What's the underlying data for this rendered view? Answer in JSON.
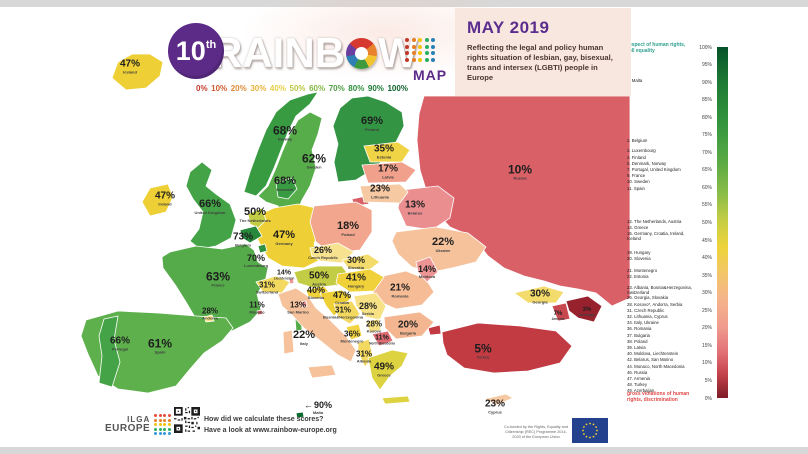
{
  "header": {
    "edition_number": "10",
    "edition_suffix": "th",
    "title_left": "RAINB",
    "title_right": "W",
    "map_label": "MAP",
    "dots_column_colors": [
      "#c0392b",
      "#e67e22",
      "#f1c40f",
      "#27ae60",
      "#2980b9"
    ],
    "scale_ticks": [
      {
        "label": "0%",
        "color": "#c53a2e"
      },
      {
        "label": "10%",
        "color": "#d05c2f"
      },
      {
        "label": "20%",
        "color": "#df8c36"
      },
      {
        "label": "30%",
        "color": "#e9b33d"
      },
      {
        "label": "40%",
        "color": "#e6cf45"
      },
      {
        "label": "50%",
        "color": "#bcc944"
      },
      {
        "label": "60%",
        "color": "#84b746"
      },
      {
        "label": "70%",
        "color": "#4d9f43"
      },
      {
        "label": "80%",
        "color": "#2f8f3e"
      },
      {
        "label": "90%",
        "color": "#1b7a33"
      },
      {
        "label": "100%",
        "color": "#0d622c"
      }
    ],
    "panel": {
      "title": "MAY 2019",
      "subtitle": "Reflecting the legal and policy human rights situation of lesbian, gay, bisexual, trans and intersex (LGBTI) people in Europe",
      "bg_color": "#f8e7de",
      "title_color": "#5b2d8e"
    }
  },
  "legend": {
    "top_label": "respect of human rights, full equality",
    "bottom_label": "gross violations of human rights, discrimination",
    "axis_ticks": [
      "100%",
      "95%",
      "90%",
      "85%",
      "80%",
      "75%",
      "70%",
      "65%",
      "60%",
      "55%",
      "50%",
      "45%",
      "40%",
      "35%",
      "30%",
      "25%",
      "20%",
      "15%",
      "10%",
      "5%",
      "0%"
    ],
    "gradient_stops": [
      [
        "#06522a",
        0
      ],
      [
        "#1d7a34",
        10
      ],
      [
        "#35963f",
        22
      ],
      [
        "#57a944",
        32
      ],
      [
        "#8cbd48",
        42
      ],
      [
        "#c9cf45",
        50
      ],
      [
        "#eed33a",
        57
      ],
      [
        "#f2c766",
        64
      ],
      [
        "#f5b48b",
        72
      ],
      [
        "#ef9a8d",
        80
      ],
      [
        "#e37077",
        87
      ],
      [
        "#c6444c",
        93
      ],
      [
        "#7c1b27",
        100
      ]
    ],
    "rankings": [
      {
        "rank": "1.",
        "label": "Malta",
        "score": 90
      },
      {
        "rank": "2.",
        "label": "Belgium",
        "score": 73
      },
      {
        "rank": "3.",
        "label": "Luxembourg",
        "score": 70
      },
      {
        "rank": "4.",
        "label": "Finland",
        "score": 69
      },
      {
        "rank": "5.",
        "label": "Denmark, Norway",
        "score": 68
      },
      {
        "rank": "7.",
        "label": "Portugal, United Kingdom",
        "score": 66
      },
      {
        "rank": "9.",
        "label": "France",
        "score": 63
      },
      {
        "rank": "10.",
        "label": "Sweden",
        "score": 62
      },
      {
        "rank": "11.",
        "label": "Spain",
        "score": 61
      },
      {
        "rank": "12.",
        "label": "The Netherlands, Austria",
        "score": 50
      },
      {
        "rank": "14.",
        "label": "Greece",
        "score": 49
      },
      {
        "rank": "15.",
        "label": "Germany, Croatia, Ireland, Iceland",
        "score": 47
      },
      {
        "rank": "19.",
        "label": "Hungary",
        "score": 41
      },
      {
        "rank": "20.",
        "label": "Slovenia",
        "score": 40
      },
      {
        "rank": "21.",
        "label": "Montenegro",
        "score": 36
      },
      {
        "rank": "22.",
        "label": "Estonia",
        "score": 35
      },
      {
        "rank": "23.",
        "label": "Albania, Bosnia&Herzegovina, Switzerland",
        "score": 31
      },
      {
        "rank": "26.",
        "label": "Georgia, Slovakia",
        "score": 30
      },
      {
        "rank": "28.",
        "label": "Kosovo*, Andorra, Serbia",
        "score": 28
      },
      {
        "rank": "31.",
        "label": "Czech Republic",
        "score": 26
      },
      {
        "rank": "32.",
        "label": "Lithuania, Cyprus",
        "score": 23
      },
      {
        "rank": "34.",
        "label": "Italy, Ukraine",
        "score": 22
      },
      {
        "rank": "36.",
        "label": "Romania",
        "score": 21
      },
      {
        "rank": "37.",
        "label": "Bulgaria",
        "score": 20
      },
      {
        "rank": "38.",
        "label": "Poland",
        "score": 18
      },
      {
        "rank": "39.",
        "label": "Latvia",
        "score": 17
      },
      {
        "rank": "40.",
        "label": "Moldova, Liechtenstein",
        "score": 14
      },
      {
        "rank": "42.",
        "label": "Belarus, San Marino",
        "score": 13
      },
      {
        "rank": "44.",
        "label": "Monaco, North Macedonia",
        "score": 11
      },
      {
        "rank": "46.",
        "label": "Russia",
        "score": 10
      },
      {
        "rank": "47.",
        "label": "Armenia",
        "score": 7
      },
      {
        "rank": "48.",
        "label": "Turkey",
        "score": 5
      },
      {
        "rank": "49.",
        "label": "Azerbaijan",
        "score": 3
      }
    ]
  },
  "map": {
    "unit": "%",
    "countries": [
      {
        "key": "russia",
        "name": "Russia",
        "value": "10%",
        "score": 10,
        "color": "#d96067"
      },
      {
        "key": "norway",
        "name": "Norway",
        "value": "68%",
        "score": 68,
        "color": "#389b42"
      },
      {
        "key": "sweden",
        "name": "Sweden",
        "value": "62%",
        "score": 62,
        "color": "#58ad4b"
      },
      {
        "key": "finland",
        "name": "Finland",
        "value": "69%",
        "score": 69,
        "color": "#339544"
      },
      {
        "key": "iceland",
        "name": "Iceland",
        "value": "47%",
        "score": 47,
        "color": "#eecf35"
      },
      {
        "key": "ireland",
        "name": "Ireland",
        "value": "47%",
        "score": 47,
        "color": "#eecf35"
      },
      {
        "key": "uk",
        "name": "United Kingdom",
        "value": "66%",
        "score": 66,
        "color": "#44a347"
      },
      {
        "key": "france",
        "name": "France",
        "value": "63%",
        "score": 63,
        "color": "#55ab4a"
      },
      {
        "key": "spain",
        "name": "Spain",
        "value": "61%",
        "score": 61,
        "color": "#5db04c"
      },
      {
        "key": "portugal",
        "name": "Portugal",
        "value": "66%",
        "score": 66,
        "color": "#44a347"
      },
      {
        "key": "germany",
        "name": "Germany",
        "value": "47%",
        "score": 47,
        "color": "#eecf35"
      },
      {
        "key": "poland",
        "name": "Poland",
        "value": "18%",
        "score": 18,
        "color": "#f2a68d"
      },
      {
        "key": "belarus",
        "name": "Belarus",
        "value": "13%",
        "score": 13,
        "color": "#eb8e90"
      },
      {
        "key": "ukraine",
        "name": "Ukraine",
        "value": "22%",
        "score": 22,
        "color": "#f5c29c"
      },
      {
        "key": "romania",
        "name": "Romania",
        "value": "21%",
        "score": 21,
        "color": "#f5bc96"
      },
      {
        "key": "italy",
        "name": "Italy",
        "value": "22%",
        "score": 22,
        "color": "#f5c29c"
      },
      {
        "key": "turkey",
        "name": "Turkey",
        "value": "5%",
        "score": 5,
        "color": "#c23b43"
      },
      {
        "key": "denmark",
        "name": "Denmark",
        "value": "68%",
        "score": 68,
        "color": "#389b42"
      },
      {
        "key": "netherlands",
        "name": "The Netherlands",
        "value": "50%",
        "score": 50,
        "color": "#c3cc45"
      },
      {
        "key": "belgium",
        "name": "Belgium",
        "value": "73%",
        "score": 73,
        "color": "#27873b"
      },
      {
        "key": "luxembourg",
        "name": "Luxembourg",
        "value": "70%",
        "score": 70,
        "color": "#2f9140"
      },
      {
        "key": "switzerland",
        "name": "Switzerland",
        "value": "31%",
        "score": 31,
        "color": "#f3d95f"
      },
      {
        "key": "liechtenstein",
        "name": "Liechtenstein",
        "value": "14%",
        "score": 14,
        "color": "#ed9494"
      },
      {
        "key": "austria",
        "name": "Austria",
        "value": "50%",
        "score": 50,
        "color": "#c3cc45"
      },
      {
        "key": "czech",
        "name": "Czech Republic",
        "value": "26%",
        "score": 26,
        "color": "#f7e38f"
      },
      {
        "key": "slovakia",
        "name": "Slovakia",
        "value": "30%",
        "score": 30,
        "color": "#f4dc6c"
      },
      {
        "key": "hungary",
        "name": "Hungary",
        "value": "41%",
        "score": 41,
        "color": "#f0d139"
      },
      {
        "key": "slovenia",
        "name": "Slovenia",
        "value": "40%",
        "score": 40,
        "color": "#f0d139"
      },
      {
        "key": "croatia",
        "name": "Croatia",
        "value": "47%",
        "score": 47,
        "color": "#eecf35"
      },
      {
        "key": "bih",
        "name": "Bosnia&Herzegovina",
        "value": "31%",
        "score": 31,
        "color": "#f3d95f"
      },
      {
        "key": "serbia",
        "name": "Serbia",
        "value": "28%",
        "score": 28,
        "color": "#f6e184"
      },
      {
        "key": "kosovo",
        "name": "Kosovo",
        "value": "28%",
        "score": 28,
        "color": "#f6e184"
      },
      {
        "key": "montenegro",
        "name": "Montenegro",
        "value": "36%",
        "score": 36,
        "color": "#f1d445"
      },
      {
        "key": "nmacedonia",
        "name": "North Macedonia",
        "value": "11%",
        "score": 11,
        "color": "#de6d73"
      },
      {
        "key": "albania",
        "name": "Albania",
        "value": "31%",
        "score": 31,
        "color": "#f3d95f"
      },
      {
        "key": "greece",
        "name": "Greece",
        "value": "49%",
        "score": 49,
        "color": "#ddd23f"
      },
      {
        "key": "bulgaria",
        "name": "Bulgaria",
        "value": "20%",
        "score": 20,
        "color": "#f4b691"
      },
      {
        "key": "moldova",
        "name": "Moldova",
        "value": "14%",
        "score": 14,
        "color": "#ed9494"
      },
      {
        "key": "estonia",
        "name": "Estonia",
        "value": "35%",
        "score": 35,
        "color": "#f1d445"
      },
      {
        "key": "latvia",
        "name": "Latvia",
        "value": "17%",
        "score": 17,
        "color": "#f1a08b"
      },
      {
        "key": "lithuania",
        "name": "Lithuania",
        "value": "23%",
        "score": 23,
        "color": "#f6c9a2"
      },
      {
        "key": "georgia",
        "name": "Georgia",
        "value": "30%",
        "score": 30,
        "color": "#f4dc6c"
      },
      {
        "key": "armenia",
        "name": "Armenia",
        "value": "7%",
        "score": 7,
        "color": "#c84850"
      },
      {
        "key": "azerbaijan",
        "name": "Azerbaijan",
        "value": "3%",
        "score": 3,
        "color": "#97222e"
      },
      {
        "key": "sanmarino",
        "name": "San Marino",
        "value": "13%",
        "score": 13,
        "color": "#eb8e90"
      },
      {
        "key": "monaco",
        "name": "Monaco",
        "value": "11%",
        "score": 11,
        "color": "#de6d73"
      },
      {
        "key": "andorra",
        "name": "Andorra",
        "value": "28%",
        "score": 28,
        "color": "#f6e184"
      },
      {
        "key": "cyprus",
        "name": "Cyprus",
        "value": "23%",
        "score": 23,
        "color": "#f6c9a2"
      },
      {
        "key": "malta",
        "name": "Malta",
        "value": "90%",
        "score": 90,
        "color": "#0e6b2f"
      }
    ]
  },
  "footer": {
    "ilga_line1": "ILGA",
    "ilga_line2": "EUROPE",
    "ilga_dot_colors": [
      "#e74c3c",
      "#e67e22",
      "#f1c40f",
      "#27ae60",
      "#3498db"
    ],
    "question": "How did we calculate these scores?",
    "link_text": "Have a look at www.rainbow-europe.org",
    "cofunded": "Co-funded by the Rights, Equality and Citizenship (REC) Programme 2014-2020 of the European Union"
  }
}
